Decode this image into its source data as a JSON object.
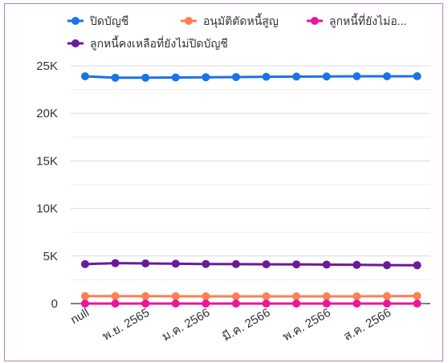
{
  "chart_data": {
    "type": "line",
    "title": "",
    "xlabel": "",
    "ylabel": "",
    "ylim": [
      0,
      25000
    ],
    "y_ticks": [
      {
        "value": 0,
        "label": "0"
      },
      {
        "value": 5000,
        "label": "5K"
      },
      {
        "value": 10000,
        "label": "10K"
      },
      {
        "value": 15000,
        "label": "15K"
      },
      {
        "value": 20000,
        "label": "20K"
      },
      {
        "value": 25000,
        "label": "25K"
      }
    ],
    "x_tick_labels": [
      {
        "index": 0,
        "label": "null"
      },
      {
        "index": 2,
        "label": "พ.ย. 2565"
      },
      {
        "index": 4,
        "label": "ม.ค. 2566"
      },
      {
        "index": 6,
        "label": "มี.ค. 2566"
      },
      {
        "index": 8,
        "label": "พ.ค. 2566"
      },
      {
        "index": 10,
        "label": "ส.ค. 2566"
      }
    ],
    "grid": true,
    "legend_position": "top",
    "series": [
      {
        "name": "ปิดบัญชี",
        "legend_label": "ปิดบัญชี",
        "color": "#1a73e8",
        "values": [
          23900,
          23750,
          23750,
          23780,
          23800,
          23820,
          23850,
          23870,
          23880,
          23900,
          23900,
          23910
        ]
      },
      {
        "name": "อนุมัติตัดหนี้สูญ",
        "legend_label": "อนุมัติตัดหนี้สูญ",
        "color": "#ff7f50",
        "values": [
          780,
          780,
          780,
          770,
          760,
          760,
          760,
          760,
          760,
          760,
          780,
          800
        ]
      },
      {
        "name": "ลูกหนี้ที่ยังไม่อ...",
        "legend_label": "ลูกหนี้ที่ยังไม่อ...",
        "color": "#e8179b",
        "values": [
          0,
          0,
          0,
          0,
          0,
          0,
          0,
          0,
          0,
          0,
          0,
          0
        ]
      },
      {
        "name": "ลูกหนี้คงเหลือที่ยังไม่ปิดบัญชี",
        "legend_label": "ลูกหนี้คงเหลือที่ยังไม่ปิดบัญชี",
        "color": "#6a1b9a",
        "values": [
          4150,
          4250,
          4220,
          4190,
          4160,
          4150,
          4130,
          4120,
          4100,
          4070,
          4040,
          4030
        ]
      }
    ]
  }
}
